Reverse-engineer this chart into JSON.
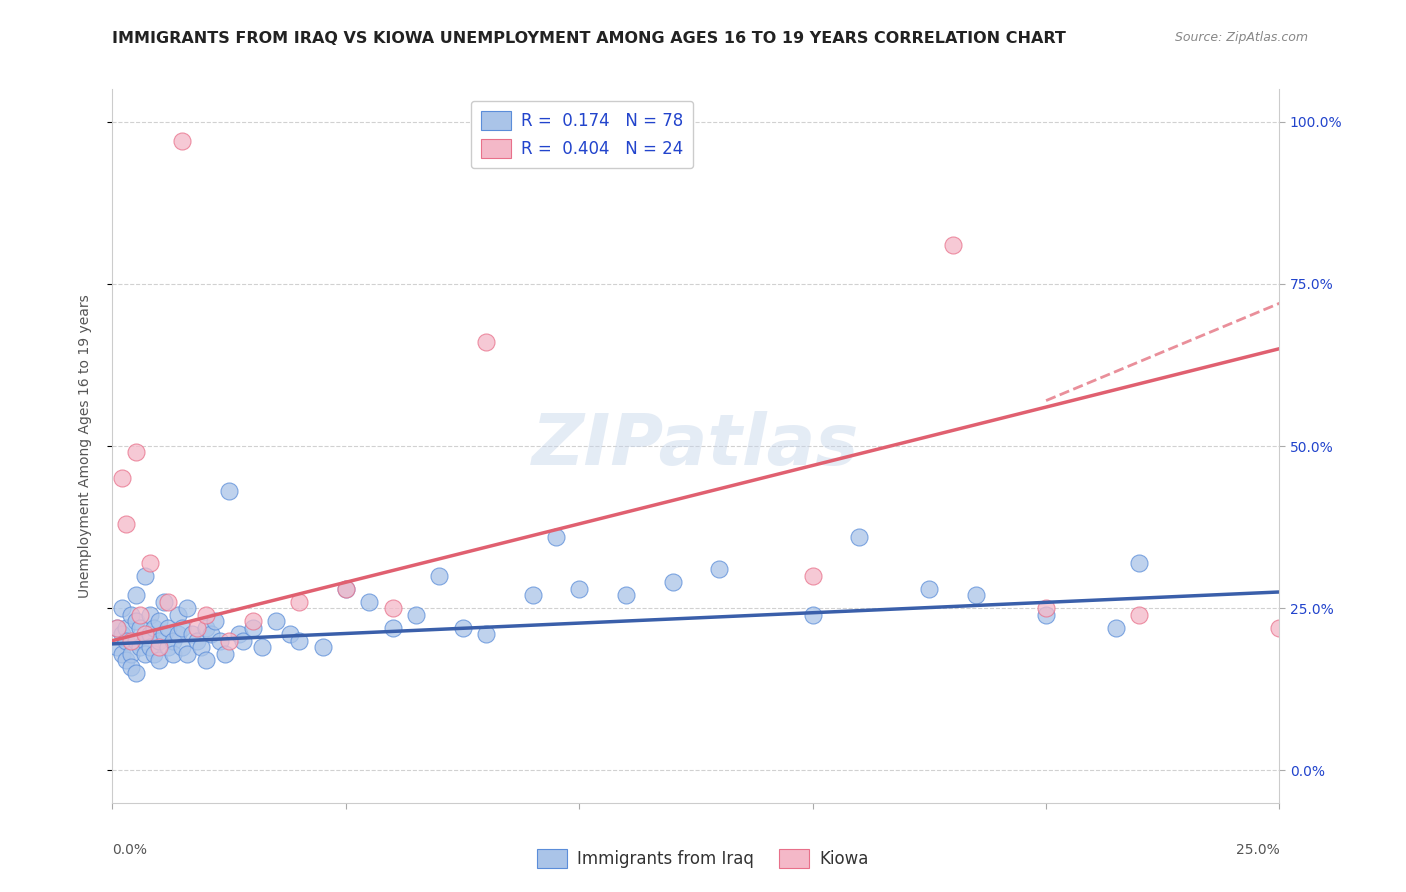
{
  "title": "IMMIGRANTS FROM IRAQ VS KIOWA UNEMPLOYMENT AMONG AGES 16 TO 19 YEARS CORRELATION CHART",
  "source": "Source: ZipAtlas.com",
  "ylabel": "Unemployment Among Ages 16 to 19 years",
  "ytick_labels": [
    "0.0%",
    "25.0%",
    "50.0%",
    "75.0%",
    "100.0%"
  ],
  "ytick_values": [
    0.0,
    0.25,
    0.5,
    0.75,
    1.0
  ],
  "xtick_labels": [
    "0.0%",
    "25.0%"
  ],
  "xtick_values": [
    0.0,
    0.25
  ],
  "xlim": [
    0.0,
    0.25
  ],
  "ylim": [
    -0.05,
    1.05
  ],
  "legend_R1": "0.174",
  "legend_N1": "78",
  "legend_R2": "0.404",
  "legend_N2": "24",
  "watermark": "ZIPatlas",
  "blue_color": "#aac4e8",
  "pink_color": "#f4b8c8",
  "blue_edge_color": "#5b8dd9",
  "pink_edge_color": "#e8708a",
  "blue_line_color": "#3a5faa",
  "pink_line_color": "#e06070",
  "blue_scatter_x": [
    0.001,
    0.001,
    0.002,
    0.002,
    0.002,
    0.003,
    0.003,
    0.003,
    0.004,
    0.004,
    0.004,
    0.005,
    0.005,
    0.005,
    0.005,
    0.006,
    0.006,
    0.007,
    0.007,
    0.007,
    0.008,
    0.008,
    0.008,
    0.009,
    0.009,
    0.01,
    0.01,
    0.01,
    0.011,
    0.011,
    0.012,
    0.012,
    0.013,
    0.013,
    0.014,
    0.014,
    0.015,
    0.015,
    0.016,
    0.016,
    0.017,
    0.018,
    0.019,
    0.02,
    0.02,
    0.021,
    0.022,
    0.023,
    0.024,
    0.025,
    0.027,
    0.028,
    0.03,
    0.032,
    0.035,
    0.038,
    0.04,
    0.045,
    0.05,
    0.055,
    0.06,
    0.065,
    0.07,
    0.075,
    0.08,
    0.09,
    0.095,
    0.1,
    0.11,
    0.12,
    0.13,
    0.15,
    0.16,
    0.175,
    0.185,
    0.2,
    0.215,
    0.22
  ],
  "blue_scatter_y": [
    0.19,
    0.22,
    0.18,
    0.21,
    0.25,
    0.17,
    0.22,
    0.2,
    0.18,
    0.24,
    0.16,
    0.2,
    0.23,
    0.15,
    0.27,
    0.19,
    0.22,
    0.2,
    0.18,
    0.3,
    0.21,
    0.19,
    0.24,
    0.18,
    0.22,
    0.2,
    0.17,
    0.23,
    0.21,
    0.26,
    0.19,
    0.22,
    0.2,
    0.18,
    0.21,
    0.24,
    0.19,
    0.22,
    0.18,
    0.25,
    0.21,
    0.2,
    0.19,
    0.22,
    0.17,
    0.21,
    0.23,
    0.2,
    0.18,
    0.43,
    0.21,
    0.2,
    0.22,
    0.19,
    0.23,
    0.21,
    0.2,
    0.19,
    0.28,
    0.26,
    0.22,
    0.24,
    0.3,
    0.22,
    0.21,
    0.27,
    0.36,
    0.28,
    0.27,
    0.29,
    0.31,
    0.24,
    0.36,
    0.28,
    0.27,
    0.24,
    0.22,
    0.32
  ],
  "pink_scatter_x": [
    0.001,
    0.002,
    0.003,
    0.004,
    0.005,
    0.006,
    0.007,
    0.008,
    0.01,
    0.012,
    0.015,
    0.018,
    0.02,
    0.025,
    0.03,
    0.04,
    0.05,
    0.06,
    0.08,
    0.15,
    0.18,
    0.2,
    0.22,
    0.25
  ],
  "pink_scatter_y": [
    0.22,
    0.45,
    0.38,
    0.2,
    0.49,
    0.24,
    0.21,
    0.32,
    0.19,
    0.26,
    0.97,
    0.22,
    0.24,
    0.2,
    0.23,
    0.26,
    0.28,
    0.25,
    0.66,
    0.3,
    0.81,
    0.25,
    0.24,
    0.22
  ],
  "blue_trend_x": [
    0.0,
    0.25
  ],
  "blue_trend_y": [
    0.195,
    0.275
  ],
  "pink_trend_x": [
    0.0,
    0.25
  ],
  "pink_trend_y": [
    0.2,
    0.65
  ],
  "pink_dash_trend_x": [
    0.2,
    0.25
  ],
  "pink_dash_trend_y": [
    0.57,
    0.72
  ],
  "background_color": "#ffffff",
  "grid_color": "#cccccc",
  "title_fontsize": 11.5,
  "axis_label_fontsize": 10,
  "tick_fontsize": 10,
  "legend_fontsize": 12,
  "source_fontsize": 9,
  "watermark_fontsize": 52,
  "watermark_color": "#c5d5ea",
  "watermark_alpha": 0.45,
  "legend_text_color": "#2244cc"
}
